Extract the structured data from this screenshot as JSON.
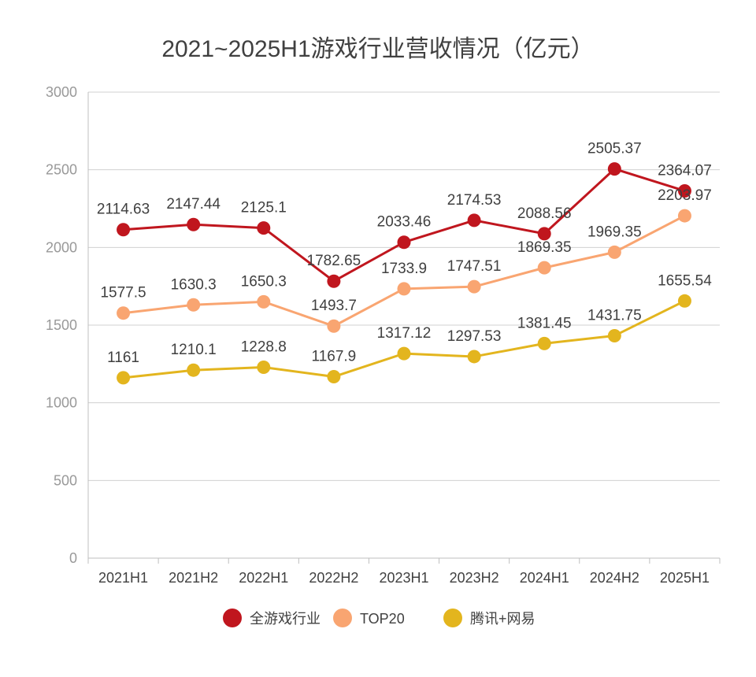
{
  "chart_data": {
    "type": "line",
    "title": "2021~2025H1游戏行业营收情况（亿元）",
    "categories": [
      "2021H1",
      "2021H2",
      "2022H1",
      "2022H2",
      "2023H1",
      "2023H2",
      "2024H1",
      "2024H2",
      "2025H1"
    ],
    "ylim": [
      0,
      3000
    ],
    "yticks": [
      0,
      500,
      1000,
      1500,
      2000,
      2500,
      3000
    ],
    "ytick_labels": [
      "0",
      "500",
      "1000",
      "1500",
      "2000",
      "2500",
      "3000"
    ],
    "grid": true,
    "legend_position": "bottom",
    "series": [
      {
        "name": "全游戏行业",
        "color": "#c0161e",
        "values": [
          2114.63,
          2147.44,
          2125.1,
          1782.65,
          2033.46,
          2174.53,
          2088.56,
          2505.37,
          2364.07
        ],
        "labels": [
          "2114.63",
          "2147.44",
          "2125.1",
          "1782.65",
          "2033.46",
          "2174.53",
          "2088.56",
          "2505.37",
          "2364.07"
        ]
      },
      {
        "name": "TOP20",
        "color": "#f9a571",
        "values": [
          1577.5,
          1630.3,
          1650.3,
          1493.7,
          1733.9,
          1747.51,
          1869.35,
          1969.35,
          2203.97
        ],
        "labels": [
          "1577.5",
          "1630.3",
          "1650.3",
          "1493.7",
          "1733.9",
          "1747.51",
          "1869.35",
          "1969.35",
          "2203.97"
        ]
      },
      {
        "name": "腾讯+网易",
        "color": "#e3b51e",
        "values": [
          1161,
          1210.1,
          1228.8,
          1167.9,
          1317.12,
          1297.53,
          1381.45,
          1431.75,
          1655.54
        ],
        "labels": [
          "1161",
          "1210.1",
          "1228.8",
          "1167.9",
          "1317.12",
          "1297.53",
          "1381.45",
          "1431.75",
          "1655.54"
        ]
      }
    ]
  }
}
